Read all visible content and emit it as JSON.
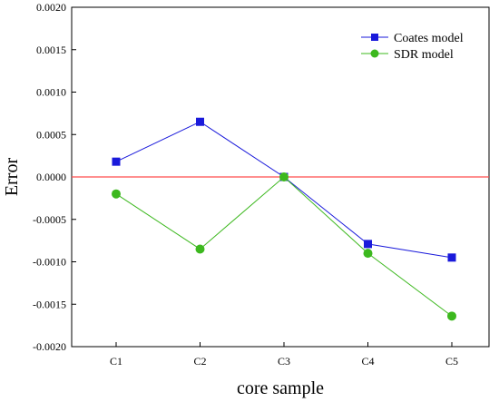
{
  "chart_data": {
    "type": "line",
    "categories": [
      "C1",
      "C2",
      "C3",
      "C4",
      "C5"
    ],
    "xlabel": "core sample",
    "ylabel": "Error",
    "ylim": [
      -0.002,
      0.002
    ],
    "yticks": [
      "0.0020",
      "0.0015",
      "0.0010",
      "0.0005",
      "0.0000",
      "-0.0005",
      "-0.0010",
      "-0.0015",
      "-0.0020"
    ],
    "reference_line": {
      "y": 0,
      "color": "#ff4d4d"
    },
    "legend_position": "top-right",
    "grid": false,
    "series": [
      {
        "name": "Coates model",
        "values": [
          0.00018,
          0.00065,
          0.0,
          -0.00079,
          -0.00095
        ],
        "color": "#1a1adb",
        "marker": "square"
      },
      {
        "name": "SDR model",
        "values": [
          -0.0002,
          -0.00085,
          0.0,
          -0.0009,
          -0.00164
        ],
        "color": "#3cb81e",
        "marker": "circle"
      }
    ]
  }
}
